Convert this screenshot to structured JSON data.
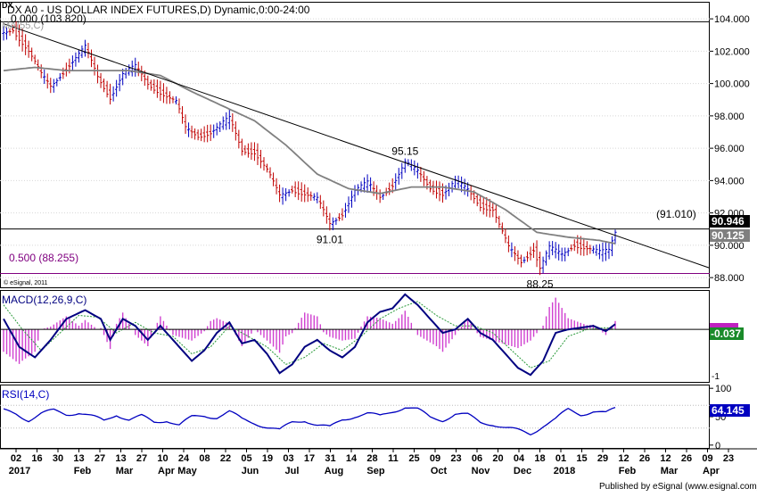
{
  "chart_data": {
    "type": "line",
    "header": {
      "symbol_glyph": "DX",
      "title": "DX A0 - US DOLLAR INDEX FUTURES,D) Dynamic,0:00-24:00",
      "ma_label": "MA(55,C)"
    },
    "x_axis": {
      "day_labels": [
        "02",
        "16",
        "30",
        "13",
        "27",
        "13",
        "27",
        "10",
        "24",
        "08",
        "22",
        "05",
        "19",
        "03",
        "17",
        "31",
        "14",
        "28",
        "11",
        "25",
        "09",
        "23",
        "06",
        "20",
        "04",
        "18",
        "01",
        "15",
        "29",
        "12",
        "26",
        "12",
        "26",
        "09",
        "23"
      ],
      "month_labels": [
        {
          "label": "2017",
          "at_day": 0
        },
        {
          "label": "Feb",
          "at_day": 3
        },
        {
          "label": "Mar",
          "at_day": 5
        },
        {
          "label": "Apr",
          "at_day": 7
        },
        {
          "label": "May",
          "at_day": 8
        },
        {
          "label": "Jun",
          "at_day": 11
        },
        {
          "label": "Jul",
          "at_day": 13
        },
        {
          "label": "Aug",
          "at_day": 15
        },
        {
          "label": "Sep",
          "at_day": 17
        },
        {
          "label": "Oct",
          "at_day": 20
        },
        {
          "label": "Nov",
          "at_day": 22
        },
        {
          "label": "Dec",
          "at_day": 24
        },
        {
          "label": "2018",
          "at_day": 26
        },
        {
          "label": "Feb",
          "at_day": 29
        },
        {
          "label": "Mar",
          "at_day": 31
        },
        {
          "label": "Apr",
          "at_day": 33
        }
      ]
    },
    "price_panel": {
      "y_ticks": [
        "104.000",
        "102.000",
        "100.000",
        "98.000",
        "96.000",
        "94.000",
        "92.000",
        "90.000",
        "88.000"
      ],
      "ylim": [
        87.4,
        105.0
      ],
      "fib_0": {
        "label": "0.000 (103.820)",
        "value": 103.82
      },
      "fib_50": {
        "label": "0.500 (88.255)",
        "value": 88.255
      },
      "support_line": {
        "label": "(91.010)",
        "value": 91.01
      },
      "price_badge": "90.946",
      "ma_badge": "90.125",
      "annotations": [
        {
          "label": "95.15",
          "index": 128,
          "value": 95.15
        },
        {
          "label": "91.01",
          "index": 104,
          "value": 91.01
        },
        {
          "label": "88.25",
          "index": 171,
          "value": 88.25
        }
      ],
      "trendline": [
        {
          "index": 0,
          "value": 103.7
        },
        {
          "index": 225,
          "value": 88.6
        }
      ],
      "candle_count": 196,
      "close_anchors": [
        [
          0,
          103.1
        ],
        [
          3,
          103.4
        ],
        [
          8,
          102.0
        ],
        [
          12,
          100.5
        ],
        [
          15,
          99.8
        ],
        [
          20,
          101.0
        ],
        [
          26,
          102.2
        ],
        [
          30,
          100.4
        ],
        [
          34,
          99.2
        ],
        [
          38,
          100.6
        ],
        [
          42,
          101.0
        ],
        [
          46,
          100.0
        ],
        [
          50,
          99.5
        ],
        [
          55,
          98.8
        ],
        [
          58,
          97.2
        ],
        [
          62,
          96.8
        ],
        [
          66,
          97.0
        ],
        [
          72,
          97.8
        ],
        [
          76,
          95.9
        ],
        [
          80,
          95.8
        ],
        [
          84,
          94.6
        ],
        [
          88,
          93.0
        ],
        [
          92,
          93.5
        ],
        [
          96,
          93.2
        ],
        [
          100,
          92.8
        ],
        [
          104,
          91.3
        ],
        [
          108,
          92.0
        ],
        [
          112,
          93.4
        ],
        [
          116,
          93.8
        ],
        [
          120,
          93.0
        ],
        [
          124,
          93.8
        ],
        [
          128,
          95.1
        ],
        [
          132,
          94.5
        ],
        [
          136,
          93.6
        ],
        [
          140,
          93.2
        ],
        [
          144,
          93.9
        ],
        [
          148,
          93.4
        ],
        [
          152,
          92.5
        ],
        [
          156,
          92.2
        ],
        [
          158,
          91.2
        ],
        [
          161,
          89.8
        ],
        [
          165,
          89.0
        ],
        [
          169,
          89.8
        ],
        [
          171,
          88.6
        ],
        [
          174,
          89.8
        ],
        [
          178,
          89.4
        ],
        [
          182,
          90.1
        ],
        [
          186,
          89.8
        ],
        [
          190,
          89.5
        ],
        [
          193,
          89.7
        ],
        [
          195,
          90.9
        ]
      ],
      "ma_anchors": [
        [
          0,
          100.8
        ],
        [
          10,
          101.0
        ],
        [
          20,
          100.8
        ],
        [
          30,
          100.8
        ],
        [
          40,
          100.8
        ],
        [
          50,
          100.5
        ],
        [
          60,
          99.5
        ],
        [
          70,
          98.6
        ],
        [
          80,
          97.7
        ],
        [
          90,
          96.2
        ],
        [
          100,
          94.4
        ],
        [
          110,
          93.5
        ],
        [
          120,
          93.2
        ],
        [
          130,
          93.6
        ],
        [
          140,
          93.6
        ],
        [
          150,
          93.3
        ],
        [
          160,
          92.2
        ],
        [
          170,
          90.8
        ],
        [
          180,
          90.5
        ],
        [
          190,
          90.3
        ],
        [
          195,
          90.1
        ]
      ]
    },
    "macd_panel": {
      "label": "MACD(12,26,9,C)",
      "macd_badge": "-0.037",
      "y_label": "-1",
      "zero_line": 0,
      "ylim": [
        -1.5,
        1.1
      ],
      "macd_anchors": [
        [
          0,
          0.3
        ],
        [
          5,
          -0.5
        ],
        [
          10,
          -0.8
        ],
        [
          15,
          -0.3
        ],
        [
          20,
          0.3
        ],
        [
          26,
          0.55
        ],
        [
          31,
          0.3
        ],
        [
          34,
          -0.3
        ],
        [
          38,
          0.3
        ],
        [
          42,
          0.1
        ],
        [
          46,
          -0.3
        ],
        [
          50,
          0.1
        ],
        [
          56,
          -0.5
        ],
        [
          60,
          -0.9
        ],
        [
          64,
          -0.6
        ],
        [
          68,
          -0.1
        ],
        [
          72,
          0.2
        ],
        [
          76,
          -0.4
        ],
        [
          80,
          -0.3
        ],
        [
          84,
          -0.7
        ],
        [
          88,
          -1.25
        ],
        [
          92,
          -1.0
        ],
        [
          96,
          -0.5
        ],
        [
          100,
          -0.3
        ],
        [
          104,
          -0.6
        ],
        [
          108,
          -0.8
        ],
        [
          112,
          -0.5
        ],
        [
          116,
          0.2
        ],
        [
          120,
          0.5
        ],
        [
          124,
          0.6
        ],
        [
          128,
          1.0
        ],
        [
          132,
          0.7
        ],
        [
          136,
          0.3
        ],
        [
          140,
          -0.1
        ],
        [
          144,
          0.0
        ],
        [
          148,
          0.3
        ],
        [
          152,
          -0.1
        ],
        [
          156,
          -0.3
        ],
        [
          160,
          -0.7
        ],
        [
          164,
          -1.1
        ],
        [
          168,
          -1.3
        ],
        [
          172,
          -0.9
        ],
        [
          176,
          -0.1
        ],
        [
          180,
          0.0
        ],
        [
          184,
          0.05
        ],
        [
          188,
          0.1
        ],
        [
          192,
          -0.05
        ],
        [
          195,
          0.15
        ]
      ],
      "signal_anchors": [
        [
          0,
          0.7
        ],
        [
          6,
          0.0
        ],
        [
          12,
          -0.6
        ],
        [
          18,
          -0.1
        ],
        [
          24,
          0.4
        ],
        [
          30,
          0.35
        ],
        [
          36,
          -0.1
        ],
        [
          42,
          0.2
        ],
        [
          48,
          -0.1
        ],
        [
          54,
          -0.2
        ],
        [
          60,
          -0.7
        ],
        [
          66,
          -0.5
        ],
        [
          72,
          0.1
        ],
        [
          78,
          -0.2
        ],
        [
          84,
          -0.5
        ],
        [
          90,
          -1.0
        ],
        [
          96,
          -0.8
        ],
        [
          102,
          -0.4
        ],
        [
          108,
          -0.6
        ],
        [
          114,
          -0.2
        ],
        [
          120,
          0.3
        ],
        [
          126,
          0.6
        ],
        [
          132,
          0.8
        ],
        [
          138,
          0.4
        ],
        [
          144,
          0.1
        ],
        [
          150,
          0.1
        ],
        [
          156,
          -0.1
        ],
        [
          162,
          -0.6
        ],
        [
          168,
          -1.1
        ],
        [
          174,
          -0.9
        ],
        [
          180,
          -0.2
        ],
        [
          186,
          0.0
        ],
        [
          192,
          0.05
        ],
        [
          195,
          0.0
        ]
      ]
    },
    "rsi_panel": {
      "label": "RSI(14,C)",
      "rsi_badge": "64.145",
      "y_ticks": [
        "100",
        "50",
        "0"
      ],
      "ylim": [
        -5,
        105
      ],
      "rsi_anchors": [
        [
          0,
          60
        ],
        [
          4,
          55
        ],
        [
          8,
          45
        ],
        [
          12,
          55
        ],
        [
          16,
          60
        ],
        [
          20,
          55
        ],
        [
          24,
          58
        ],
        [
          28,
          50
        ],
        [
          32,
          42
        ],
        [
          36,
          55
        ],
        [
          40,
          45
        ],
        [
          44,
          50
        ],
        [
          48,
          40
        ],
        [
          52,
          45
        ],
        [
          56,
          35
        ],
        [
          60,
          48
        ],
        [
          64,
          52
        ],
        [
          68,
          50
        ],
        [
          72,
          58
        ],
        [
          76,
          45
        ],
        [
          80,
          40
        ],
        [
          84,
          32
        ],
        [
          88,
          25
        ],
        [
          92,
          40
        ],
        [
          96,
          45
        ],
        [
          100,
          35
        ],
        [
          104,
          30
        ],
        [
          108,
          45
        ],
        [
          112,
          52
        ],
        [
          116,
          55
        ],
        [
          120,
          50
        ],
        [
          124,
          60
        ],
        [
          128,
          68
        ],
        [
          132,
          62
        ],
        [
          136,
          48
        ],
        [
          140,
          45
        ],
        [
          144,
          55
        ],
        [
          148,
          52
        ],
        [
          152,
          40
        ],
        [
          156,
          38
        ],
        [
          160,
          30
        ],
        [
          164,
          25
        ],
        [
          168,
          20
        ],
        [
          172,
          35
        ],
        [
          176,
          45
        ],
        [
          180,
          62
        ],
        [
          184,
          55
        ],
        [
          188,
          60
        ],
        [
          192,
          55
        ],
        [
          195,
          64
        ]
      ]
    },
    "footer": {
      "esignal_small": "© eSignal, 2011",
      "published": "Published by eSignal (www.esignal.com)"
    }
  }
}
